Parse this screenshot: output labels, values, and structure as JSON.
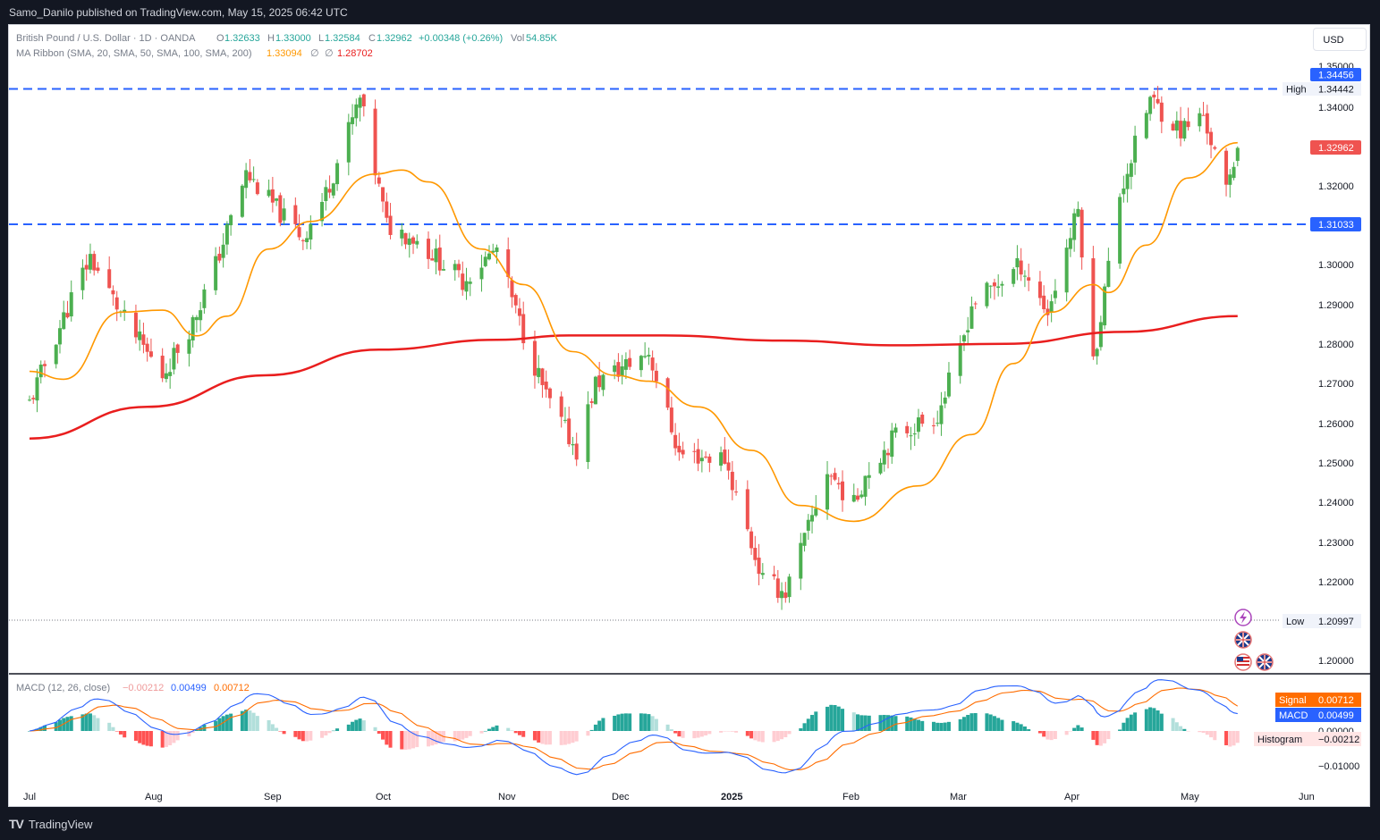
{
  "header": {
    "publisher": "Samo_Danilo published on TradingView.com, May 15, 2025 06:42 UTC"
  },
  "footer": {
    "brand": "TradingView",
    "logo_icon": "tradingview-logo-icon"
  },
  "currency_button": "USD",
  "legend": {
    "symbol": "British Pound / U.S. Dollar · 1D · OANDA",
    "open_label": "O",
    "open": "1.32633",
    "high_label": "H",
    "high": "1.33000",
    "low_label": "L",
    "low": "1.32584",
    "close_label": "C",
    "close": "1.32962",
    "change": "+0.00348 (+0.26%)",
    "vol_label": "Vol",
    "vol": "54.85K",
    "ma_title": "MA Ribbon (SMA, 20, SMA, 50, SMA, 100, SMA, 200)",
    "ma_value1": "1.33094",
    "ma_empty1": "∅",
    "ma_empty2": "∅",
    "ma_value2": "1.28702"
  },
  "price_axis": {
    "ticks": [
      "1.35000",
      "1.34000",
      "1.32000",
      "1.30000",
      "1.29000",
      "1.28000",
      "1.27000",
      "1.26000",
      "1.25000",
      "1.24000",
      "1.23000",
      "1.22000",
      "1.20000"
    ],
    "level_top": "1.34456",
    "high_label": "High",
    "high_value": "1.34442",
    "last_price": "1.32962",
    "level_support": "1.31033",
    "low_label": "Low",
    "low_value": "1.20997"
  },
  "macd": {
    "title": "MACD (12, 26, close)",
    "hist_value": "−0.00212",
    "macd_value": "0.00499",
    "signal_value": "0.00712",
    "signal_label": "Signal",
    "signal_tag": "0.00712",
    "macd_label": "MACD",
    "macd_tag": "0.00499",
    "hist_label": "Histogram",
    "hist_tag": "−0.00212",
    "ticks": [
      "0.00000",
      "−0.01000"
    ]
  },
  "time_axis": [
    "Jul",
    "Aug",
    "Sep",
    "Oct",
    "Nov",
    "Dec",
    "2025",
    "Feb",
    "Mar",
    "Apr",
    "May",
    "Jun"
  ],
  "colors": {
    "up": "#26a69a",
    "up_fill": "#4caf50",
    "down": "#ef5350",
    "ma20": "#ff9800",
    "ma200": "#e91e1e",
    "level": "#2962ff",
    "macd_line": "#2962ff",
    "signal_line": "#ff6d00",
    "hist_up": "#26a69a",
    "hist_up_light": "#b2dfdb",
    "hist_down": "#ff5252",
    "hist_down_light": "#ffcdd2"
  },
  "chart_data": {
    "type": "candlestick",
    "title": "British Pound / U.S. Dollar · 1D · OANDA",
    "y_range": [
      1.1965,
      1.3515
    ],
    "x_range": [
      "2024-07-01",
      "2025-06-01"
    ],
    "horizontal_levels": [
      1.34456,
      1.31033
    ],
    "high": 1.34442,
    "low": 1.20997,
    "last_close": 1.32962,
    "close_path": [
      {
        "date": "2024-07-01",
        "close": 1.265
      },
      {
        "date": "2024-07-12",
        "close": 1.2915
      },
      {
        "date": "2024-07-17",
        "close": 1.302
      },
      {
        "date": "2024-07-26",
        "close": 1.286
      },
      {
        "date": "2024-08-05",
        "close": 1.272
      },
      {
        "date": "2024-08-13",
        "close": 1.2855
      },
      {
        "date": "2024-08-19",
        "close": 1.3
      },
      {
        "date": "2024-08-27",
        "close": 1.323
      },
      {
        "date": "2024-09-06",
        "close": 1.312
      },
      {
        "date": "2024-09-11",
        "close": 1.307
      },
      {
        "date": "2024-09-17",
        "close": 1.318
      },
      {
        "date": "2024-09-26",
        "close": 1.342
      },
      {
        "date": "2024-10-03",
        "close": 1.31
      },
      {
        "date": "2024-10-10",
        "close": 1.307
      },
      {
        "date": "2024-10-23",
        "close": 1.296
      },
      {
        "date": "2024-11-01",
        "close": 1.304
      },
      {
        "date": "2024-11-06",
        "close": 1.288
      },
      {
        "date": "2024-11-14",
        "close": 1.2665
      },
      {
        "date": "2024-11-22",
        "close": 1.253
      },
      {
        "date": "2024-11-27",
        "close": 1.27
      },
      {
        "date": "2024-12-06",
        "close": 1.275
      },
      {
        "date": "2024-12-11",
        "close": 1.278
      },
      {
        "date": "2024-12-19",
        "close": 1.252
      },
      {
        "date": "2024-12-31",
        "close": 1.251
      },
      {
        "date": "2025-01-10",
        "close": 1.22
      },
      {
        "date": "2025-01-16",
        "close": 1.217
      },
      {
        "date": "2025-01-22",
        "close": 1.233
      },
      {
        "date": "2025-01-27",
        "close": 1.248
      },
      {
        "date": "2025-02-03",
        "close": 1.239
      },
      {
        "date": "2025-02-06",
        "close": 1.247
      },
      {
        "date": "2025-02-14",
        "close": 1.257
      },
      {
        "date": "2025-02-25",
        "close": 1.262
      },
      {
        "date": "2025-03-03",
        "close": 1.278
      },
      {
        "date": "2025-03-06",
        "close": 1.29
      },
      {
        "date": "2025-03-19",
        "close": 1.3
      },
      {
        "date": "2025-03-26",
        "close": 1.288
      },
      {
        "date": "2025-04-03",
        "close": 1.314
      },
      {
        "date": "2025-04-07",
        "close": 1.275
      },
      {
        "date": "2025-04-14",
        "close": 1.318
      },
      {
        "date": "2025-04-22",
        "close": 1.342
      },
      {
        "date": "2025-04-30",
        "close": 1.334
      },
      {
        "date": "2025-05-06",
        "close": 1.338
      },
      {
        "date": "2025-05-12",
        "close": 1.318
      },
      {
        "date": "2025-05-15",
        "close": 1.32962
      }
    ],
    "series": [
      {
        "name": "MA20",
        "points": [
          {
            "date": "2024-07-01",
            "value": 1.273
          },
          {
            "date": "2024-07-10",
            "value": 1.271
          },
          {
            "date": "2024-07-25",
            "value": 1.288
          },
          {
            "date": "2024-08-05",
            "value": 1.2885
          },
          {
            "date": "2024-08-14",
            "value": 1.282
          },
          {
            "date": "2024-08-22",
            "value": 1.287
          },
          {
            "date": "2024-09-02",
            "value": 1.304
          },
          {
            "date": "2024-09-13",
            "value": 1.311
          },
          {
            "date": "2024-09-30",
            "value": 1.323
          },
          {
            "date": "2024-10-07",
            "value": 1.324
          },
          {
            "date": "2024-10-14",
            "value": 1.321
          },
          {
            "date": "2024-10-28",
            "value": 1.304
          },
          {
            "date": "2024-11-08",
            "value": 1.295
          },
          {
            "date": "2024-11-21",
            "value": 1.278
          },
          {
            "date": "2024-12-02",
            "value": 1.272
          },
          {
            "date": "2024-12-11",
            "value": 1.2705
          },
          {
            "date": "2024-12-24",
            "value": 1.264
          },
          {
            "date": "2025-01-07",
            "value": 1.253
          },
          {
            "date": "2025-01-20",
            "value": 1.239
          },
          {
            "date": "2025-02-03",
            "value": 1.235
          },
          {
            "date": "2025-02-20",
            "value": 1.244
          },
          {
            "date": "2025-03-06",
            "value": 1.257
          },
          {
            "date": "2025-03-17",
            "value": 1.275
          },
          {
            "date": "2025-03-27",
            "value": 1.288
          },
          {
            "date": "2025-04-07",
            "value": 1.295
          },
          {
            "date": "2025-04-11",
            "value": 1.293
          },
          {
            "date": "2025-04-21",
            "value": 1.305
          },
          {
            "date": "2025-05-02",
            "value": 1.322
          },
          {
            "date": "2025-05-15",
            "value": 1.33094
          }
        ]
      },
      {
        "name": "MA200",
        "points": [
          {
            "date": "2024-07-01",
            "value": 1.256
          },
          {
            "date": "2024-08-01",
            "value": 1.264
          },
          {
            "date": "2024-09-01",
            "value": 1.272
          },
          {
            "date": "2024-10-01",
            "value": 1.2785
          },
          {
            "date": "2024-11-01",
            "value": 1.281
          },
          {
            "date": "2024-11-20",
            "value": 1.2821
          },
          {
            "date": "2024-12-15",
            "value": 1.2821
          },
          {
            "date": "2025-01-15",
            "value": 1.2808
          },
          {
            "date": "2025-02-15",
            "value": 1.2796
          },
          {
            "date": "2025-03-15",
            "value": 1.28
          },
          {
            "date": "2025-04-15",
            "value": 1.283
          },
          {
            "date": "2025-05-15",
            "value": 1.28702
          }
        ]
      }
    ],
    "macd_pane": {
      "y_ticks": [
        0.0,
        -0.01
      ],
      "macd_last": 0.00499,
      "signal_last": 0.00712,
      "histogram_last": -0.00212
    }
  }
}
